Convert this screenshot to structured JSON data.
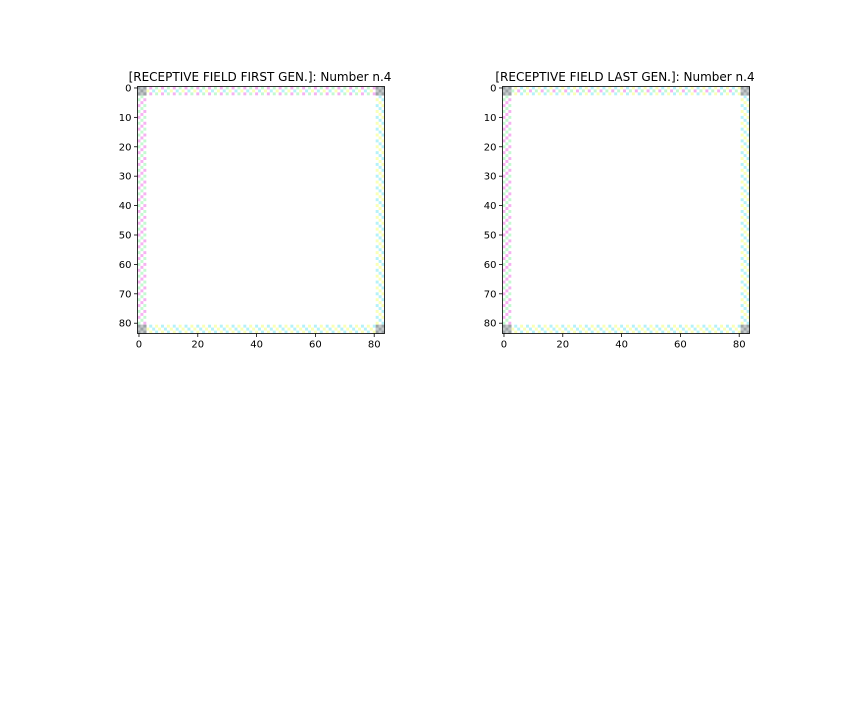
{
  "chart_data": [
    {
      "type": "heatmap",
      "title": "[RECEPTIVE FIELD FIRST GEN.]: Number n.4",
      "xlabel": "",
      "ylabel": "",
      "xlim": [
        0,
        84
      ],
      "ylim": [
        84,
        0
      ],
      "xticks": [
        "0",
        "20",
        "40",
        "60",
        "80"
      ],
      "yticks": [
        "0",
        "10",
        "20",
        "30",
        "40",
        "50",
        "60",
        "70",
        "80"
      ],
      "grid": false,
      "image": {
        "shape": [
          84,
          84
        ],
        "interior": "white",
        "border_width": 3,
        "corner_size": 3,
        "corner_color": "#9ca3a6",
        "border_colors": [
          "#f4a4f0",
          "#f8ffa8",
          "#b8f8c8",
          "#a8f0f8"
        ]
      }
    },
    {
      "type": "heatmap",
      "title": "[RECEPTIVE FIELD LAST GEN.]: Number n.4",
      "xlabel": "",
      "ylabel": "",
      "xlim": [
        0,
        84
      ],
      "ylim": [
        84,
        0
      ],
      "xticks": [
        "0",
        "20",
        "40",
        "60",
        "80"
      ],
      "yticks": [
        "0",
        "10",
        "20",
        "30",
        "40",
        "50",
        "60",
        "70",
        "80"
      ],
      "grid": false,
      "image": {
        "shape": [
          84,
          84
        ],
        "interior": "white",
        "border_width": 3,
        "corner_size": 3,
        "corner_color": "#9ca3a6",
        "border_colors": [
          "#f4a4f0",
          "#f8ffa8",
          "#b8f8c8",
          "#a8f0f8"
        ]
      }
    }
  ]
}
